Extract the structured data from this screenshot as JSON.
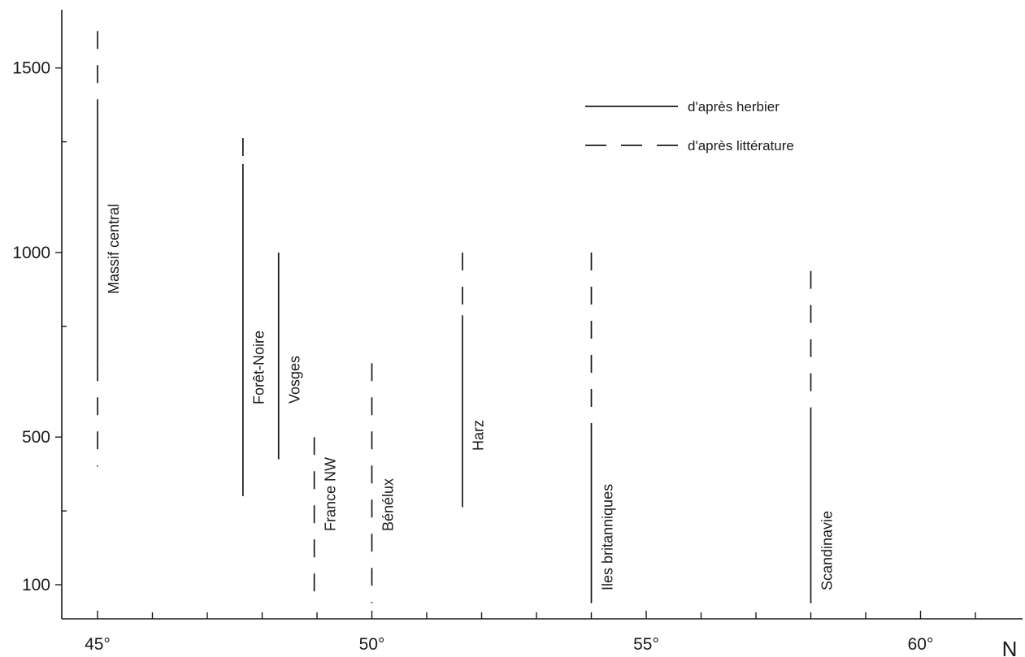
{
  "chart_data": {
    "type": "range",
    "title": "",
    "xlabel": "N",
    "ylabel": "",
    "xlim": [
      44.2,
      62
    ],
    "ylim": [
      30,
      1620
    ],
    "x_ticks": [
      {
        "value": 45,
        "label": "45°"
      },
      {
        "value": 50,
        "label": "50°"
      },
      {
        "value": 55,
        "label": "55°"
      },
      {
        "value": 60,
        "label": "60°"
      }
    ],
    "x_minor_ticks": [
      46,
      47,
      48,
      49,
      51,
      52,
      53,
      54,
      56,
      57,
      58,
      59,
      61
    ],
    "y_ticks": [
      {
        "value": 100,
        "label": "100"
      },
      {
        "value": 500,
        "label": "500"
      },
      {
        "value": 1000,
        "label": "1000"
      },
      {
        "value": 1500,
        "label": "1500"
      }
    ],
    "y_minor_ticks": [
      300,
      800,
      1300
    ],
    "grid": false,
    "legend_position": "top-right",
    "legend": [
      {
        "style": "solid",
        "label": "d'après herbier"
      },
      {
        "style": "dashed",
        "label": "d'après littérature"
      }
    ],
    "series": [
      {
        "name": "Massif central",
        "x": 45.0,
        "segments": [
          {
            "style": "dashed",
            "from": 1400,
            "to": 1600
          },
          {
            "style": "solid",
            "from": 700,
            "to": 1400
          },
          {
            "style": "dashed",
            "from": 420,
            "to": 700
          }
        ]
      },
      {
        "name": "Forêt-Noire",
        "x": 47.65,
        "segments": [
          {
            "style": "dashed",
            "from": 1240,
            "to": 1310
          },
          {
            "style": "solid",
            "from": 340,
            "to": 1240
          }
        ]
      },
      {
        "name": "Vosges",
        "x": 48.3,
        "segments": [
          {
            "style": "solid",
            "from": 440,
            "to": 1000
          }
        ]
      },
      {
        "name": "France NW",
        "x": 48.95,
        "segments": [
          {
            "style": "dashed",
            "from": 50,
            "to": 500
          }
        ]
      },
      {
        "name": "Bénélux",
        "x": 50.0,
        "segments": [
          {
            "style": "dashed",
            "from": 50,
            "to": 700
          }
        ]
      },
      {
        "name": "Harz",
        "x": 51.65,
        "segments": [
          {
            "style": "dashed",
            "from": 830,
            "to": 1000
          },
          {
            "style": "solid",
            "from": 310,
            "to": 830
          }
        ]
      },
      {
        "name": "Iles britanniques",
        "x": 54.0,
        "segments": [
          {
            "style": "dashed",
            "from": 500,
            "to": 1000
          },
          {
            "style": "solid",
            "from": 50,
            "to": 500
          }
        ]
      },
      {
        "name": "Scandinavie",
        "x": 58.0,
        "segments": [
          {
            "style": "dashed",
            "from": 550,
            "to": 950
          },
          {
            "style": "solid",
            "from": 50,
            "to": 550
          }
        ]
      }
    ]
  }
}
